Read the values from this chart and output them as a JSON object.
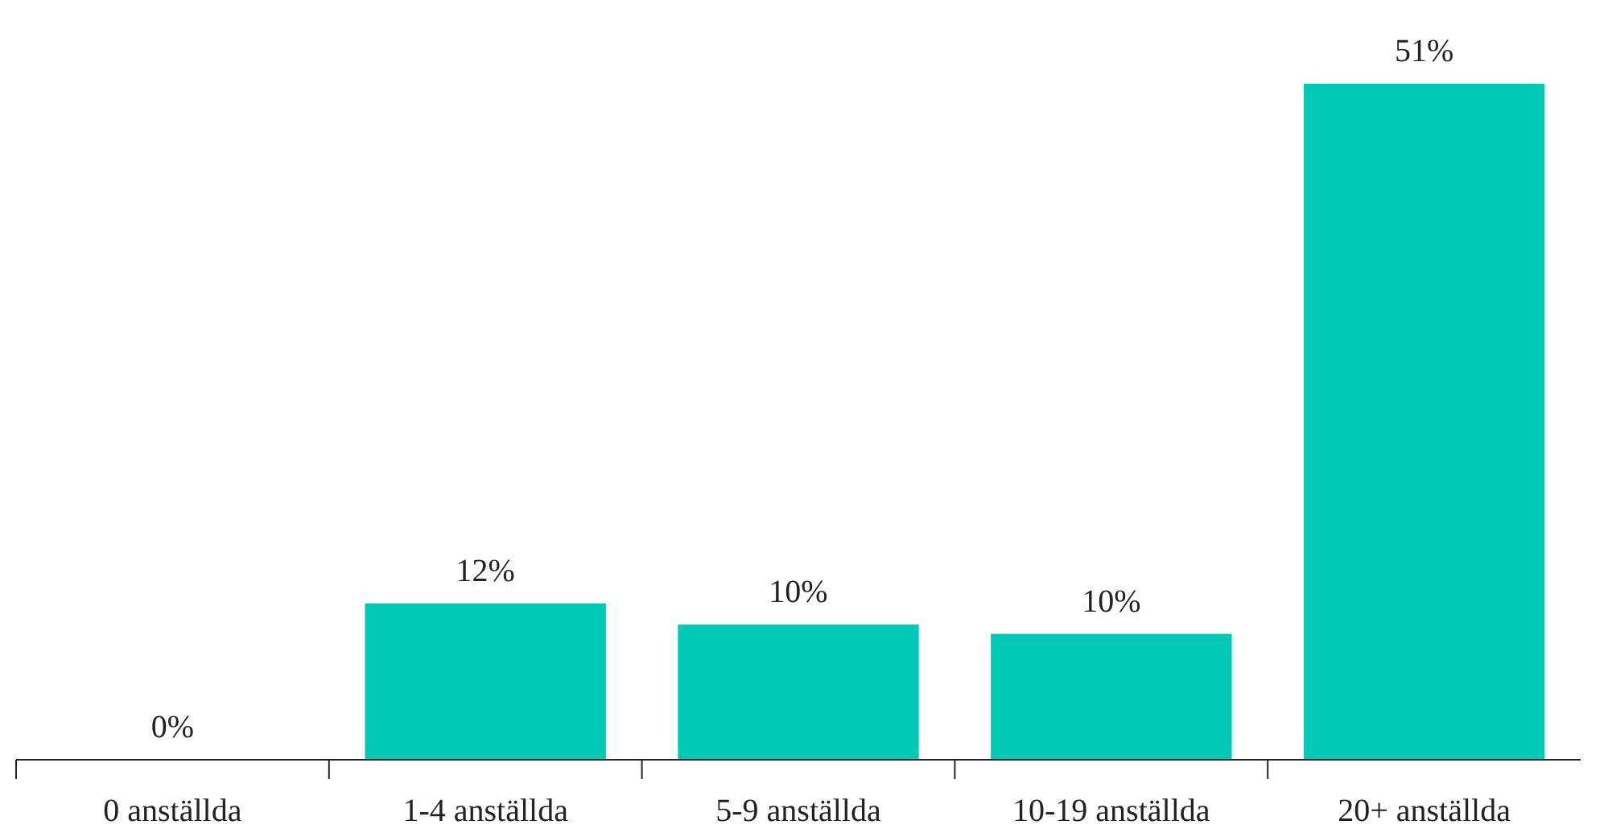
{
  "chart_data": {
    "type": "bar",
    "categories": [
      "0 anställda",
      "1-4 anställda",
      "5-9 anställda",
      "10-19 anställda",
      "20+ anställda"
    ],
    "values": [
      0,
      11.8,
      10.2,
      9.5,
      51
    ],
    "value_labels": [
      "0%",
      "12%",
      "10%",
      "10%",
      "51%"
    ],
    "color": "#00c9b7"
  }
}
